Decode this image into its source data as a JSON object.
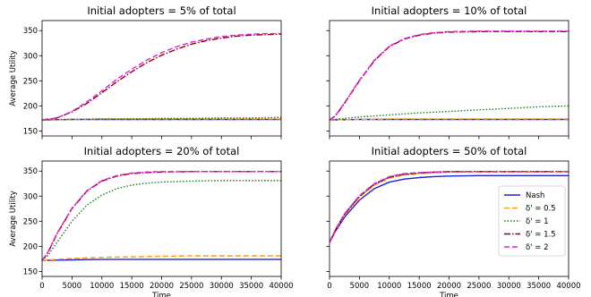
{
  "chart_data": [
    {
      "type": "line",
      "title": "Initial adopters = 5% of total",
      "xlabel": "",
      "ylabel": "Average Utility",
      "xlim": [
        0,
        40000
      ],
      "ylim": [
        140,
        370
      ],
      "show_xticklabels": false,
      "show_yticklabels": true,
      "legend": null,
      "series": [
        {
          "name": "Nash",
          "x": [
            0,
            5000,
            10000,
            15000,
            20000,
            25000,
            30000,
            35000,
            40000
          ],
          "y": [
            172,
            173,
            173,
            173,
            173,
            173,
            173,
            173,
            173
          ]
        },
        {
          "name": "δ' = 0.5",
          "x": [
            0,
            5000,
            10000,
            15000,
            20000,
            25000,
            30000,
            35000,
            40000
          ],
          "y": [
            172,
            173,
            174,
            174,
            174,
            174,
            174,
            174,
            174
          ]
        },
        {
          "name": "δ' = 1",
          "x": [
            0,
            5000,
            10000,
            15000,
            20000,
            25000,
            30000,
            35000,
            40000
          ],
          "y": [
            172,
            173,
            174,
            174,
            175,
            175,
            176,
            176,
            177
          ]
        },
        {
          "name": "δ' = 1.5",
          "x": [
            0,
            2500,
            5000,
            7500,
            10000,
            12500,
            15000,
            17500,
            20000,
            22500,
            25000,
            27500,
            30000,
            32500,
            35000,
            37500,
            40000
          ],
          "y": [
            172,
            176,
            188,
            205,
            226,
            248,
            268,
            286,
            301,
            313,
            323,
            330,
            335,
            339,
            341,
            342,
            343
          ]
        },
        {
          "name": "δ' = 2",
          "x": [
            0,
            2500,
            5000,
            7500,
            10000,
            12500,
            15000,
            17500,
            20000,
            22500,
            25000,
            27500,
            30000,
            32500,
            35000,
            37500,
            40000
          ],
          "y": [
            172,
            176,
            189,
            208,
            230,
            253,
            273,
            291,
            306,
            318,
            327,
            333,
            338,
            341,
            343,
            344,
            344
          ]
        }
      ]
    },
    {
      "type": "line",
      "title": "Initial adopters = 10% of total",
      "xlabel": "",
      "ylabel": "",
      "xlim": [
        0,
        40000
      ],
      "ylim": [
        140,
        370
      ],
      "show_xticklabels": false,
      "show_yticklabels": false,
      "legend": null,
      "series": [
        {
          "name": "Nash",
          "x": [
            0,
            5000,
            10000,
            15000,
            20000,
            25000,
            30000,
            35000,
            40000
          ],
          "y": [
            172,
            173,
            173,
            173,
            173,
            173,
            173,
            173,
            173
          ]
        },
        {
          "name": "δ' = 0.5",
          "x": [
            0,
            5000,
            10000,
            15000,
            20000,
            25000,
            30000,
            35000,
            40000
          ],
          "y": [
            172,
            173,
            174,
            174,
            174,
            174,
            174,
            174,
            174
          ]
        },
        {
          "name": "δ' = 1",
          "x": [
            0,
            5000,
            10000,
            15000,
            20000,
            25000,
            30000,
            35000,
            40000
          ],
          "y": [
            172,
            178,
            182,
            186,
            189,
            192,
            195,
            198,
            200
          ]
        },
        {
          "name": "δ' = 1.5",
          "x": [
            0,
            1000,
            2500,
            5000,
            7500,
            10000,
            12500,
            15000,
            17500,
            20000,
            25000,
            30000,
            35000,
            40000
          ],
          "y": [
            172,
            180,
            205,
            250,
            290,
            318,
            333,
            341,
            345,
            347,
            348,
            348,
            348,
            348
          ]
        },
        {
          "name": "δ' = 2",
          "x": [
            0,
            1000,
            2500,
            5000,
            7500,
            10000,
            12500,
            15000,
            17500,
            20000,
            25000,
            30000,
            35000,
            40000
          ],
          "y": [
            172,
            181,
            206,
            251,
            291,
            319,
            334,
            342,
            346,
            348,
            349,
            349,
            349,
            349
          ]
        }
      ]
    },
    {
      "type": "line",
      "title": "Initial adopters = 20% of total",
      "xlabel": "Time",
      "ylabel": "Average Utility",
      "xlim": [
        0,
        40000
      ],
      "ylim": [
        140,
        370
      ],
      "show_xticklabels": true,
      "show_yticklabels": true,
      "legend": null,
      "series": [
        {
          "name": "Nash",
          "x": [
            0,
            5000,
            10000,
            15000,
            20000,
            25000,
            30000,
            35000,
            40000
          ],
          "y": [
            172,
            173,
            174,
            174,
            174,
            174,
            174,
            174,
            174
          ]
        },
        {
          "name": "δ' = 0.5",
          "x": [
            0,
            5000,
            10000,
            15000,
            20000,
            25000,
            30000,
            35000,
            40000
          ],
          "y": [
            172,
            176,
            178,
            179,
            180,
            181,
            181,
            181,
            181
          ]
        },
        {
          "name": "δ' = 1",
          "x": [
            0,
            1000,
            2500,
            5000,
            7500,
            10000,
            12500,
            15000,
            17500,
            20000,
            25000,
            30000,
            35000,
            40000
          ],
          "y": [
            172,
            182,
            208,
            250,
            282,
            302,
            315,
            322,
            326,
            328,
            330,
            331,
            331,
            331
          ]
        },
        {
          "name": "δ' = 1.5",
          "x": [
            0,
            1000,
            2500,
            5000,
            7500,
            10000,
            12500,
            15000,
            17500,
            20000,
            25000,
            30000,
            35000,
            40000
          ],
          "y": [
            172,
            188,
            225,
            275,
            310,
            330,
            340,
            345,
            347,
            348,
            349,
            349,
            349,
            349
          ]
        },
        {
          "name": "δ' = 2",
          "x": [
            0,
            1000,
            2500,
            5000,
            7500,
            10000,
            12500,
            15000,
            17500,
            20000,
            25000,
            30000,
            35000,
            40000
          ],
          "y": [
            172,
            189,
            226,
            276,
            311,
            331,
            341,
            346,
            348,
            349,
            349,
            349,
            349,
            349
          ]
        }
      ]
    },
    {
      "type": "line",
      "title": "Initial adopters = 50% of total",
      "xlabel": "Time",
      "ylabel": "",
      "xlim": [
        0,
        40000
      ],
      "ylim": [
        140,
        370
      ],
      "show_xticklabels": true,
      "show_yticklabels": false,
      "legend": "right",
      "series": [
        {
          "name": "Nash",
          "x": [
            0,
            1000,
            2500,
            5000,
            7500,
            10000,
            12500,
            15000,
            17500,
            20000,
            25000,
            30000,
            35000,
            40000
          ],
          "y": [
            208,
            230,
            258,
            292,
            315,
            328,
            334,
            337,
            339,
            340,
            341,
            341,
            341,
            341
          ]
        },
        {
          "name": "δ' = 0.5",
          "x": [
            0,
            1000,
            2500,
            5000,
            7500,
            10000,
            12500,
            15000,
            17500,
            20000,
            25000,
            30000,
            35000,
            40000
          ],
          "y": [
            208,
            232,
            262,
            298,
            322,
            336,
            342,
            345,
            347,
            348,
            348,
            348,
            348,
            348
          ]
        },
        {
          "name": "δ' = 1",
          "x": [
            0,
            1000,
            2500,
            5000,
            7500,
            10000,
            12500,
            15000,
            17500,
            20000,
            25000,
            30000,
            35000,
            40000
          ],
          "y": [
            208,
            233,
            263,
            299,
            323,
            337,
            343,
            346,
            347,
            348,
            349,
            349,
            349,
            349
          ]
        },
        {
          "name": "δ' = 1.5",
          "x": [
            0,
            1000,
            2500,
            5000,
            7500,
            10000,
            12500,
            15000,
            17500,
            20000,
            25000,
            30000,
            35000,
            40000
          ],
          "y": [
            208,
            233,
            264,
            300,
            324,
            338,
            344,
            346,
            348,
            349,
            349,
            349,
            349,
            349
          ]
        },
        {
          "name": "δ' = 2",
          "x": [
            0,
            1000,
            2500,
            5000,
            7500,
            10000,
            12500,
            15000,
            17500,
            20000,
            25000,
            30000,
            35000,
            40000
          ],
          "y": [
            208,
            234,
            265,
            301,
            325,
            339,
            345,
            347,
            348,
            349,
            349,
            349,
            349,
            349
          ]
        }
      ]
    }
  ],
  "axes": {
    "x_ticks": [
      0,
      5000,
      10000,
      15000,
      20000,
      25000,
      30000,
      35000,
      40000
    ],
    "y_ticks": [
      150,
      200,
      250,
      300,
      350
    ]
  },
  "styles": {
    "Nash": {
      "color": "#1f1fd6",
      "dash": ""
    },
    "δ' = 0.5": {
      "color": "#ff9a1a",
      "dash": "6,3"
    },
    "δ' = 1": {
      "color": "#1a7a1a",
      "dash": "1.5,2"
    },
    "δ' = 1.5": {
      "color": "#8b0000",
      "dash": "7,2,1.5,2"
    },
    "δ' = 2": {
      "color": "#e01ee0",
      "dash": "6,3"
    }
  }
}
